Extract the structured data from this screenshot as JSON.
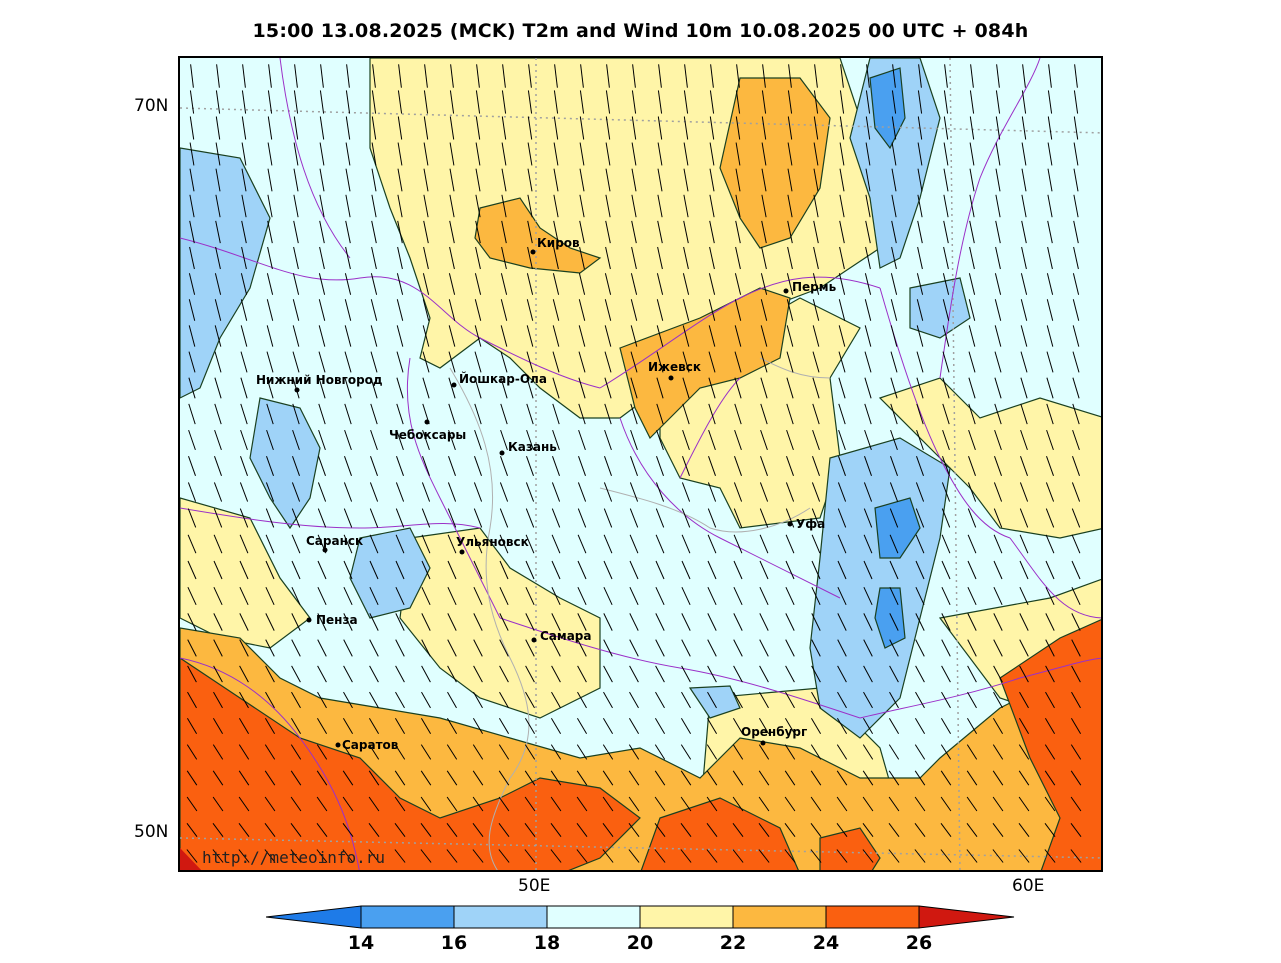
{
  "title": "15:00 13.08.2025 (MCK) T2m and Wind 10m 10.08.2025 00 UTC + 084h",
  "axes": {
    "lat_labels": [
      "70N",
      "50N"
    ],
    "lon_labels": [
      "50E",
      "60E"
    ]
  },
  "cities": [
    {
      "name": "Киров"
    },
    {
      "name": "Пермь"
    },
    {
      "name": "Ижевск"
    },
    {
      "name": "Нижний Новгород"
    },
    {
      "name": "Йошкар-Ола"
    },
    {
      "name": "Чебоксары"
    },
    {
      "name": "Казань"
    },
    {
      "name": "Уфа"
    },
    {
      "name": "Саранск"
    },
    {
      "name": "Ульяновск"
    },
    {
      "name": "Пенза"
    },
    {
      "name": "Самара"
    },
    {
      "name": "Оренбург"
    },
    {
      "name": "Саратов"
    }
  ],
  "watermark": "http://meteoinfo.ru",
  "colorbar": {
    "labels": [
      "14",
      "16",
      "18",
      "20",
      "22",
      "24",
      "26"
    ],
    "colors": [
      "#1e7be8",
      "#4aa0f0",
      "#9fd3f8",
      "#e0ffff",
      "#fff5a8",
      "#fcb840",
      "#fa6010",
      "#d01810"
    ]
  },
  "palette": {
    "t14": "#4aa0f0",
    "t16": "#9fd3f8",
    "t18": "#e0ffff",
    "t20": "#fff5a8",
    "t22": "#fcb840",
    "t24": "#fa6010",
    "t26": "#d01810",
    "border": "#9b30c8",
    "grid": "#a0a0a0"
  }
}
